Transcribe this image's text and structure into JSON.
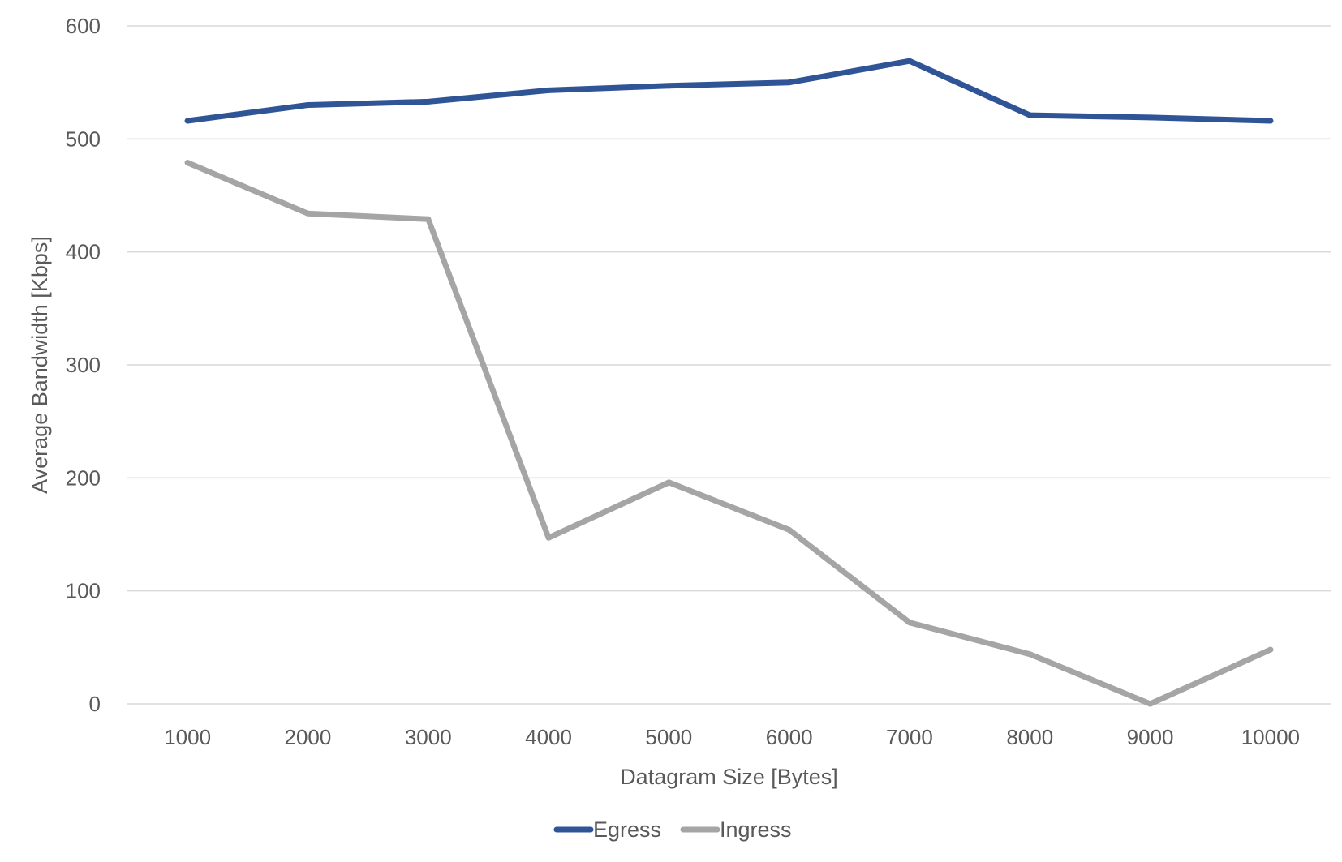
{
  "chart_data": {
    "type": "line",
    "title": "",
    "xlabel": "Datagram Size [Bytes]",
    "ylabel": "Average Bandwidth [Kbps]",
    "categories": [
      "1000",
      "2000",
      "3000",
      "4000",
      "5000",
      "6000",
      "7000",
      "8000",
      "9000",
      "10000"
    ],
    "ylim": [
      0,
      600
    ],
    "yticks": [
      0,
      100,
      200,
      300,
      400,
      500,
      600
    ],
    "grid": true,
    "legend_position": "bottom",
    "series": [
      {
        "name": "Egress",
        "color": "#2f5597",
        "values": [
          516,
          530,
          533,
          543,
          547,
          550,
          569,
          521,
          519,
          516
        ]
      },
      {
        "name": "Ingress",
        "color": "#a5a5a5",
        "values": [
          479,
          434,
          429,
          147,
          196,
          154,
          72,
          44,
          0,
          48
        ]
      }
    ]
  }
}
